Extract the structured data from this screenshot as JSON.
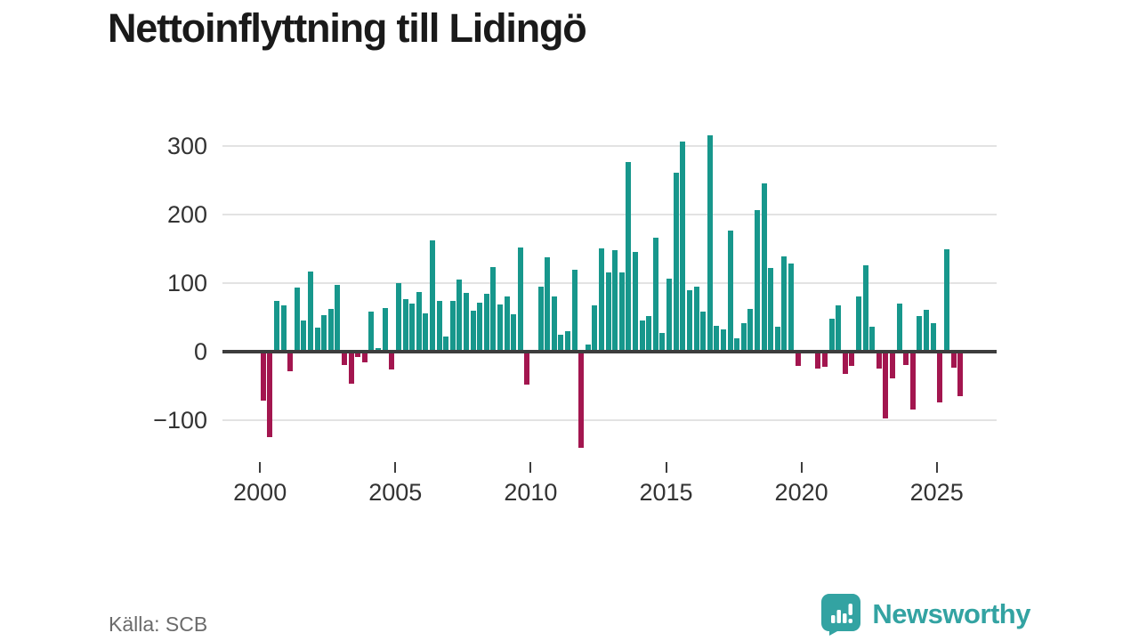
{
  "title": "Nettoinflyttning till Lidingö",
  "source": "Källa: SCB",
  "branding": {
    "name": "Newsworthy"
  },
  "colors": {
    "positive_bar": "#17978C",
    "negative_bar": "#A3164F",
    "gridline": "#e3e3e3",
    "zero_line": "#3d3d3d",
    "axis_text": "#333333",
    "title_text": "#1a1a1a",
    "source_text": "#6b6b6b",
    "brand_teal": "#33A3A2"
  },
  "chart_data": {
    "type": "bar",
    "title": "Nettoinflyttning till Lidingö",
    "frequency": "quarterly",
    "xlabel": "",
    "ylabel": "",
    "ylim": [
      -150,
      331
    ],
    "yticks": [
      -100,
      0,
      100,
      200,
      300
    ],
    "xticks": [
      2000,
      2005,
      2010,
      2015,
      2020,
      2025
    ],
    "grid": "horizontal",
    "legend": "none",
    "series_by_year": [
      {
        "year": 2000,
        "q": [
          -72,
          -125,
          74,
          67
        ]
      },
      {
        "year": 2001,
        "q": [
          -28,
          94,
          46,
          117
        ]
      },
      {
        "year": 2002,
        "q": [
          35,
          53,
          62,
          97
        ]
      },
      {
        "year": 2003,
        "q": [
          -20,
          -47,
          -8,
          -15
        ]
      },
      {
        "year": 2004,
        "q": [
          58,
          5,
          63,
          -26
        ]
      },
      {
        "year": 2005,
        "q": [
          100,
          77,
          70,
          87
        ]
      },
      {
        "year": 2006,
        "q": [
          56,
          162,
          74,
          22
        ]
      },
      {
        "year": 2007,
        "q": [
          74,
          105,
          86,
          60
        ]
      },
      {
        "year": 2008,
        "q": [
          71,
          84,
          123,
          69
        ]
      },
      {
        "year": 2009,
        "q": [
          80,
          55,
          152,
          -48
        ]
      },
      {
        "year": 2010,
        "q": [
          0,
          95,
          138,
          81
        ]
      },
      {
        "year": 2011,
        "q": [
          25,
          30,
          120,
          -140
        ]
      },
      {
        "year": 2012,
        "q": [
          10,
          68,
          151,
          116
        ]
      },
      {
        "year": 2013,
        "q": [
          148,
          116,
          276,
          146
        ]
      },
      {
        "year": 2014,
        "q": [
          45,
          52,
          166,
          27
        ]
      },
      {
        "year": 2015,
        "q": [
          107,
          261,
          306,
          90
        ]
      },
      {
        "year": 2016,
        "q": [
          95,
          59,
          316,
          38
        ]
      },
      {
        "year": 2017,
        "q": [
          32,
          176,
          20,
          42
        ]
      },
      {
        "year": 2018,
        "q": [
          62,
          207,
          246,
          122
        ]
      },
      {
        "year": 2019,
        "q": [
          36,
          139,
          129,
          -21
        ]
      },
      {
        "year": 2020,
        "q": [
          0,
          3,
          -25,
          -22
        ]
      },
      {
        "year": 2021,
        "q": [
          48,
          68,
          -32,
          -21
        ]
      },
      {
        "year": 2022,
        "q": [
          81,
          126,
          36,
          -25
        ]
      },
      {
        "year": 2023,
        "q": [
          -97,
          -39,
          70,
          -20
        ]
      },
      {
        "year": 2024,
        "q": [
          -85,
          52,
          61,
          42
        ]
      },
      {
        "year": 2025,
        "q": [
          -74,
          150,
          -24,
          -65
        ]
      }
    ]
  }
}
